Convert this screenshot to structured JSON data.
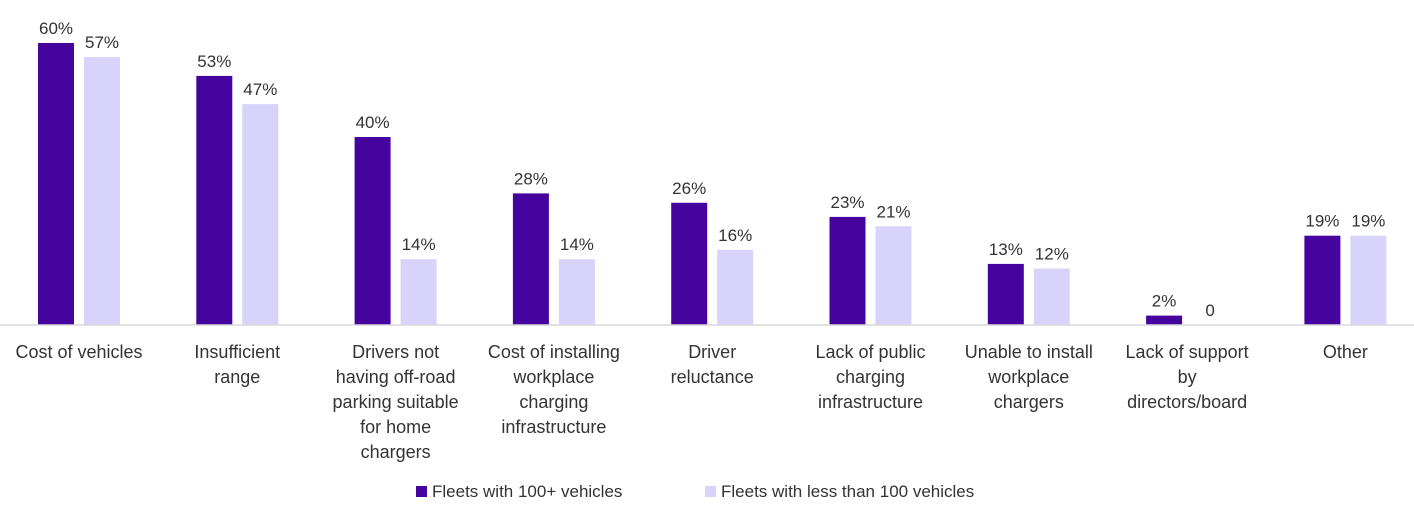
{
  "chart_data": {
    "type": "bar",
    "categories": [
      [
        "Cost of vehicles"
      ],
      [
        "Insufficient",
        "range"
      ],
      [
        "Drivers not",
        "having off-road",
        "parking suitable",
        "for home",
        "chargers"
      ],
      [
        "Cost of installing",
        "workplace",
        "charging",
        "infrastructure"
      ],
      [
        "Driver",
        "reluctance"
      ],
      [
        "Lack of public",
        "charging",
        "infrastructure"
      ],
      [
        "Unable to install",
        "workplace",
        "chargers"
      ],
      [
        "Lack of support",
        "by",
        "directors/board"
      ],
      [
        "Other"
      ]
    ],
    "series": [
      {
        "name": "Fleets with 100+ vehicles",
        "color": "#46049e",
        "values": [
          60,
          53,
          40,
          28,
          26,
          23,
          13,
          2,
          19
        ],
        "labels": [
          "60%",
          "53%",
          "40%",
          "28%",
          "26%",
          "23%",
          "13%",
          "2%",
          "19%"
        ]
      },
      {
        "name": "Fleets with less than 100 vehicles",
        "color": "#d8d3fa",
        "values": [
          57,
          47,
          14,
          14,
          16,
          21,
          12,
          0,
          19
        ],
        "labels": [
          "57%",
          "47%",
          "14%",
          "14%",
          "16%",
          "21%",
          "12%",
          "0",
          "19%"
        ]
      }
    ],
    "ylim": [
      0,
      60
    ],
    "grid": false,
    "legend": "bottom-center",
    "axis_color": "#d9d9d9"
  }
}
